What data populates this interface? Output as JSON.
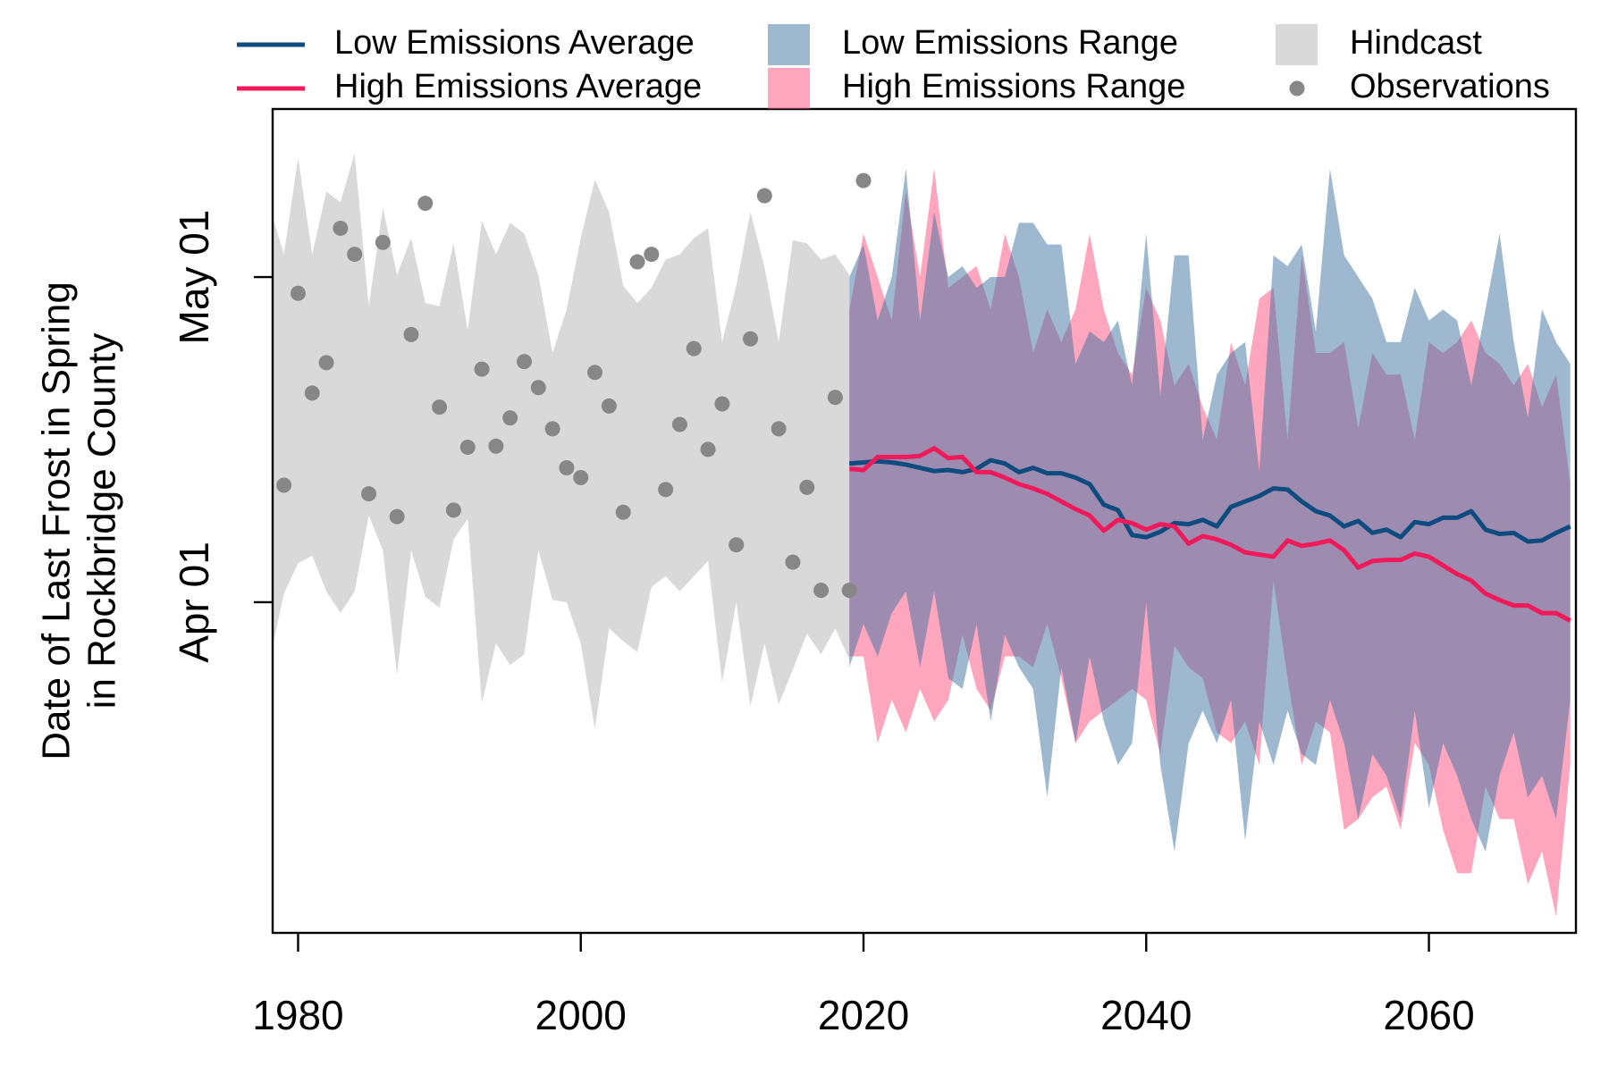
{
  "chart_data": {
    "type": "line",
    "ylabel": [
      "Date of Last Frost in Spring",
      "in Rockbridge County"
    ],
    "xlim": [
      1978.2,
      2070.4
    ],
    "xticks": [
      1980,
      2000,
      2020,
      2040,
      2060
    ],
    "ylim": [
      60.5,
      136.5
    ],
    "yticks": [
      {
        "value": 91,
        "label": "Apr 01"
      },
      {
        "value": 121,
        "label": "May 01"
      }
    ],
    "series": [
      {
        "name": "Low Emissions Average",
        "style": "line",
        "color": "#0e4c7f",
        "x": [
          2019,
          2020,
          2021,
          2022,
          2023,
          2024,
          2025,
          2026,
          2027,
          2028,
          2029,
          2030,
          2031,
          2032,
          2033,
          2034,
          2035,
          2036,
          2037,
          2038,
          2039,
          2040,
          2041,
          2042,
          2043,
          2044,
          2045,
          2046,
          2047,
          2048,
          2049,
          2050,
          2051,
          2052,
          2053,
          2054,
          2055,
          2056,
          2057,
          2058,
          2059,
          2060,
          2061,
          2062,
          2063,
          2064,
          2065,
          2066,
          2067,
          2068,
          2069,
          2070
        ],
        "values": [
          103.8,
          103.9,
          104.0,
          103.9,
          103.7,
          103.4,
          103.1,
          103.2,
          103.0,
          103.3,
          104.1,
          103.8,
          103.0,
          103.4,
          102.9,
          102.9,
          102.5,
          101.9,
          100.0,
          99.5,
          97.2,
          97.0,
          97.5,
          98.3,
          98.2,
          98.6,
          98.0,
          99.8,
          100.3,
          100.8,
          101.5,
          101.4,
          100.3,
          99.4,
          99.0,
          98.0,
          98.5,
          97.4,
          97.7,
          97.0,
          98.4,
          98.2,
          98.8,
          98.8,
          99.4,
          97.7,
          97.3,
          97.4,
          96.6,
          96.7,
          97.4,
          98.0
        ]
      },
      {
        "name": "High Emissions Average",
        "style": "line",
        "color": "#f0195a",
        "x": [
          2019,
          2020,
          2021,
          2022,
          2023,
          2024,
          2025,
          2026,
          2027,
          2028,
          2029,
          2030,
          2031,
          2032,
          2033,
          2034,
          2035,
          2036,
          2037,
          2038,
          2039,
          2040,
          2041,
          2042,
          2043,
          2044,
          2045,
          2046,
          2047,
          2048,
          2049,
          2050,
          2051,
          2052,
          2053,
          2054,
          2055,
          2056,
          2057,
          2058,
          2059,
          2060,
          2061,
          2062,
          2063,
          2064,
          2065,
          2066,
          2067,
          2068,
          2069,
          2070
        ],
        "values": [
          103.3,
          103.2,
          104.4,
          104.4,
          104.4,
          104.5,
          105.2,
          104.3,
          104.4,
          103.0,
          103.0,
          102.5,
          101.9,
          101.5,
          101.0,
          100.3,
          99.6,
          99.0,
          97.6,
          98.6,
          98.3,
          97.7,
          98.2,
          98.0,
          96.4,
          97.1,
          96.8,
          96.3,
          95.6,
          95.4,
          95.2,
          96.7,
          96.2,
          96.4,
          96.7,
          95.8,
          94.2,
          94.8,
          94.9,
          94.9,
          95.5,
          95.2,
          94.4,
          93.6,
          93.0,
          91.8,
          91.2,
          90.7,
          90.7,
          90.0,
          90.0,
          89.3
        ]
      },
      {
        "name": "Low Emissions Range",
        "style": "band",
        "color": "#3c72a0",
        "x": [
          2019,
          2020,
          2021,
          2022,
          2023,
          2024,
          2025,
          2026,
          2027,
          2028,
          2029,
          2030,
          2031,
          2032,
          2033,
          2034,
          2035,
          2036,
          2037,
          2038,
          2039,
          2040,
          2041,
          2042,
          2043,
          2044,
          2045,
          2046,
          2047,
          2048,
          2049,
          2050,
          2051,
          2052,
          2053,
          2054,
          2055,
          2056,
          2057,
          2058,
          2059,
          2060,
          2061,
          2062,
          2063,
          2064,
          2065,
          2066,
          2067,
          2068,
          2069,
          2070
        ],
        "upper": [
          121,
          124,
          117,
          121,
          131,
          117,
          127,
          121,
          122,
          120,
          121,
          121,
          126,
          126,
          124,
          124,
          113,
          116,
          115,
          117,
          111,
          125,
          110,
          123,
          123,
          106,
          112,
          114,
          115,
          103,
          123,
          122,
          124,
          116,
          131,
          123,
          121,
          119,
          115,
          115,
          120,
          117,
          118,
          117,
          111,
          118,
          125,
          115,
          108,
          118,
          115,
          113
        ],
        "lower": [
          85,
          89,
          86,
          90,
          92,
          85,
          92,
          84,
          83,
          89,
          80,
          88,
          85,
          83,
          73,
          85,
          78,
          86,
          80,
          76,
          78,
          91,
          76,
          68,
          78,
          81,
          78,
          82,
          69,
          80,
          76,
          81,
          77,
          76,
          82,
          78,
          71,
          77,
          75,
          71,
          81,
          72,
          78,
          75,
          71,
          68,
          75,
          79,
          73,
          75,
          71,
          82
        ]
      },
      {
        "name": "High Emissions Range",
        "style": "band",
        "color": "#ff4d80",
        "x": [
          2019,
          2020,
          2021,
          2022,
          2023,
          2024,
          2025,
          2026,
          2027,
          2028,
          2029,
          2030,
          2031,
          2032,
          2033,
          2034,
          2035,
          2036,
          2037,
          2038,
          2039,
          2040,
          2041,
          2042,
          2043,
          2044,
          2045,
          2046,
          2047,
          2048,
          2049,
          2050,
          2051,
          2052,
          2053,
          2054,
          2055,
          2056,
          2057,
          2058,
          2059,
          2060,
          2061,
          2062,
          2063,
          2064,
          2065,
          2066,
          2067,
          2068,
          2069,
          2070
        ],
        "upper": [
          118,
          125,
          121,
          117,
          129,
          121,
          131,
          120,
          121,
          122,
          118,
          125,
          121,
          114,
          118,
          115,
          118,
          125,
          118,
          114,
          112,
          120,
          117,
          111,
          113,
          109,
          106,
          115,
          111,
          119,
          120,
          106,
          123,
          114,
          114,
          115,
          107,
          114,
          112,
          112,
          106,
          115,
          114,
          115,
          117,
          114,
          113,
          111,
          113,
          109,
          112,
          102
        ],
        "lower": [
          86,
          86,
          78,
          82,
          79,
          83,
          80,
          82,
          88,
          83,
          81,
          86,
          86,
          85,
          89,
          84,
          78,
          80,
          81,
          82,
          83,
          82,
          77,
          87,
          85,
          84,
          79,
          78,
          80,
          76,
          93,
          84,
          76,
          80,
          79,
          70,
          71,
          73,
          74,
          70,
          78,
          76,
          70,
          66,
          66,
          74,
          71,
          71,
          65,
          68,
          62,
          76
        ]
      },
      {
        "name": "Hindcast",
        "style": "band",
        "color": "#d9d9d9",
        "x": [
          1978,
          1979,
          1980,
          1981,
          1982,
          1983,
          1984,
          1985,
          1986,
          1987,
          1988,
          1989,
          1990,
          1991,
          1992,
          1993,
          1994,
          1995,
          1996,
          1997,
          1998,
          1999,
          2000,
          2001,
          2002,
          2003,
          2004,
          2005,
          2006,
          2007,
          2008,
          2009,
          2010,
          2011,
          2012,
          2013,
          2014,
          2015,
          2016,
          2017,
          2018,
          2019
        ],
        "upper": [
          127.4,
          123.1,
          132.0,
          123.1,
          128.9,
          127.9,
          132.4,
          118.3,
          127.4,
          121.2,
          124.6,
          118.6,
          118.3,
          124.1,
          116.1,
          126.2,
          123.1,
          126.0,
          125.0,
          121.2,
          114.0,
          118.0,
          124.6,
          130.0,
          127.0,
          120.2,
          118.6,
          120.0,
          122.6,
          123.1,
          124.6,
          125.5,
          115.0,
          120.2,
          127.0,
          121.9,
          115.0,
          124.4,
          124.1,
          122.6,
          123.1,
          121.2
        ],
        "lower": [
          85.7,
          91.8,
          94.6,
          95.3,
          92.0,
          90.0,
          92.0,
          99.0,
          95.8,
          84.3,
          95.8,
          91.5,
          90.5,
          96.8,
          98.7,
          81.7,
          87.2,
          85.2,
          86.2,
          95.8,
          91.2,
          91.0,
          87.2,
          79.3,
          88.6,
          87.4,
          86.4,
          92.4,
          93.4,
          92.0,
          93.4,
          94.8,
          83.6,
          91.0,
          81.4,
          87.2,
          81.6,
          84.8,
          88.1,
          86.2,
          88.6,
          85.7
        ]
      },
      {
        "name": "Observations",
        "style": "points",
        "color": "#878787",
        "x": [
          1979,
          1980,
          1981,
          1982,
          1983,
          1984,
          1985,
          1986,
          1987,
          1988,
          1989,
          1990,
          1991,
          1992,
          1993,
          1994,
          1995,
          1996,
          1997,
          1998,
          1999,
          2000,
          2001,
          2002,
          2003,
          2004,
          2005,
          2006,
          2007,
          2008,
          2009,
          2010,
          2011,
          2012,
          2013,
          2014,
          2015,
          2016,
          2017,
          2018,
          2019,
          2020
        ],
        "values": [
          101.8,
          119.5,
          110.3,
          113.1,
          125.5,
          123.1,
          101.0,
          124.2,
          98.9,
          115.7,
          127.8,
          109.0,
          99.5,
          105.3,
          112.5,
          105.4,
          108.0,
          113.2,
          110.8,
          107.0,
          103.4,
          102.5,
          112.2,
          109.1,
          99.3,
          122.4,
          123.1,
          101.4,
          107.4,
          114.4,
          105.1,
          109.3,
          96.3,
          115.3,
          128.5,
          107.0,
          94.7,
          101.6,
          92.1,
          109.9,
          92.1,
          129.9
        ]
      }
    ]
  }
}
